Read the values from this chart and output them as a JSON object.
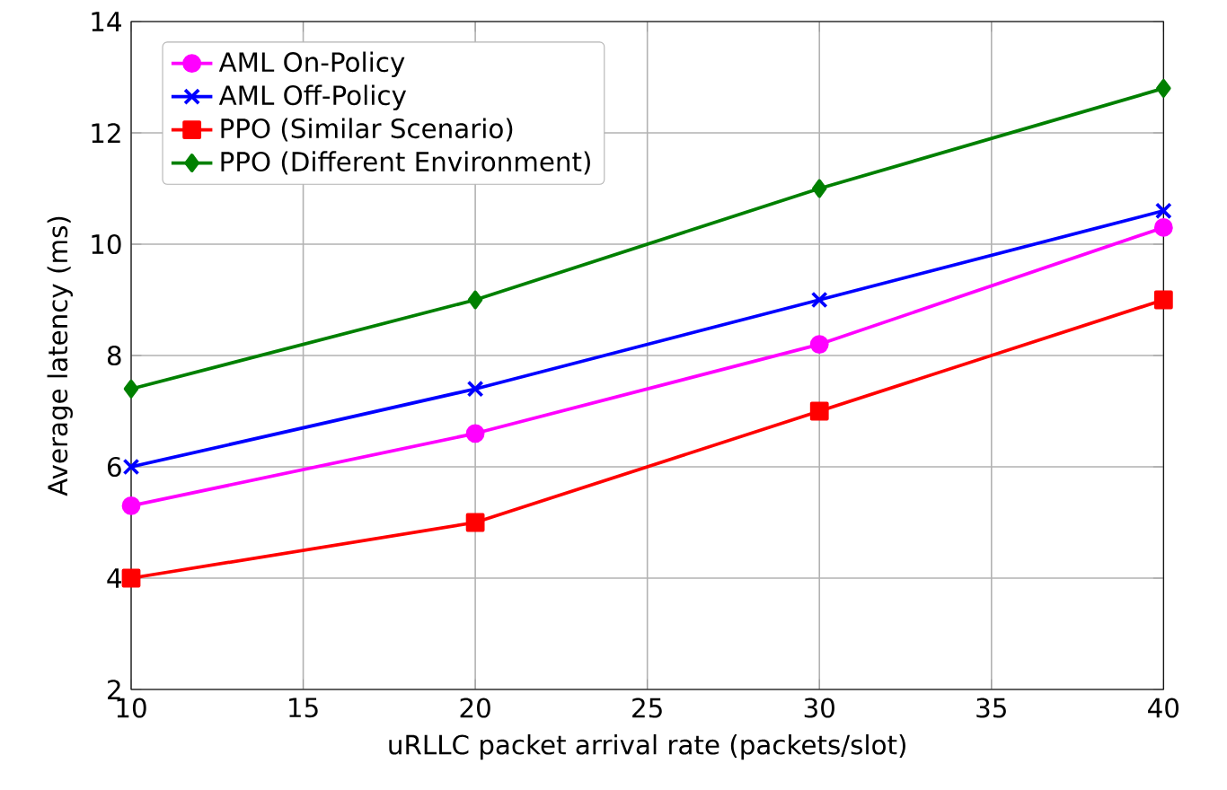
{
  "chart_data": {
    "type": "line",
    "xlabel": "uRLLC packet arrival rate (packets/slot)",
    "ylabel": "Average latency (ms)",
    "x": [
      10,
      20,
      30,
      40
    ],
    "series": [
      {
        "name": "AML On-Policy",
        "color": "#ff00ff",
        "marker": "circle",
        "values": [
          5.3,
          6.6,
          8.2,
          10.3
        ]
      },
      {
        "name": "AML Off-Policy",
        "color": "#0000ff",
        "marker": "cross",
        "values": [
          6.0,
          7.4,
          9.0,
          10.6
        ]
      },
      {
        "name": "PPO (Similar Scenario)",
        "color": "#ff0000",
        "marker": "square",
        "values": [
          4.0,
          5.0,
          7.0,
          9.0
        ]
      },
      {
        "name": "PPO (Different Environment)",
        "color": "#008000",
        "marker": "diamond",
        "values": [
          7.4,
          9.0,
          11.0,
          12.8
        ]
      }
    ],
    "xlim": [
      10,
      40
    ],
    "ylim": [
      2,
      14
    ],
    "xticks": [
      10,
      15,
      20,
      25,
      30,
      35,
      40
    ],
    "yticks": [
      2,
      4,
      6,
      8,
      10,
      12,
      14
    ],
    "grid": true,
    "legend": "top left",
    "line_style": "solid"
  }
}
